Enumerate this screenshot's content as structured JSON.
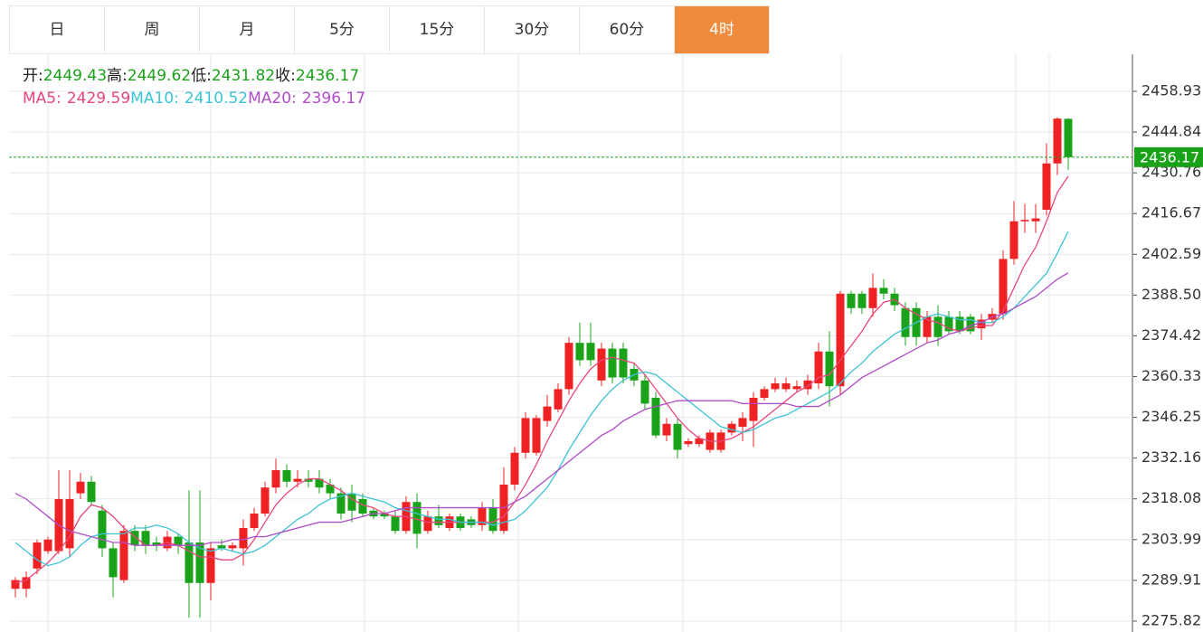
{
  "tabs": [
    "日",
    "周",
    "月",
    "5分",
    "15分",
    "30分",
    "60分",
    "4时"
  ],
  "active_tab": 7,
  "chart_data": {
    "type": "candlestick",
    "ohlc_labels": [
      "开:",
      "高:",
      "低:",
      "收:"
    ],
    "up_color": "#ee2222",
    "down_color": "#1aa31a",
    "ylim": [
      2272.06,
      2471.74
    ],
    "yticks": [
      2458.93,
      2444.84,
      2430.76,
      2416.67,
      2402.59,
      {
        "value": 2388.5,
        "label": "2388.50"
      },
      2374.42,
      2360.33,
      2346.25,
      2332.16,
      2318.08,
      2303.99,
      2289.91,
      2275.82
    ],
    "grid": true,
    "open": [
      2287,
      2287,
      2294,
      2300,
      2300,
      2301,
      2320,
      2324,
      2314,
      2301,
      2290,
      2307,
      2307,
      2303,
      2301,
      2305,
      2303,
      2303,
      2289,
      2302,
      2301,
      2301,
      2308,
      2313,
      2322,
      2328,
      2324,
      2325,
      2325,
      2323,
      2320,
      2320,
      2318,
      2314,
      2313,
      2312,
      2307,
      2317,
      2307,
      2312,
      2308,
      2312,
      2311,
      2309,
      2315,
      2307,
      2323,
      2334,
      2334,
      2345,
      2349,
      2356,
      2372,
      2372,
      2359,
      2370,
      2370,
      2363,
      2359,
      2353,
      2340,
      2344,
      2337,
      2337,
      2335,
      2335,
      2341,
      2343,
      2345,
      2353,
      2356,
      2356,
      2356,
      2356,
      2358,
      2369,
      2357,
      2389,
      2389,
      2384,
      2391,
      2389,
      2384,
      2384,
      2374,
      2381,
      2381,
      2381,
      2381,
      2377,
      2380,
      2382,
      2401,
      2414,
      2414,
      2418,
      2434,
      2449.43
    ],
    "high": [
      2291,
      2293,
      2304,
      2305,
      2328,
      2328,
      2327,
      2326,
      2316,
      2303,
      2309,
      2309,
      2309,
      2305,
      2307,
      2306,
      2321,
      2321,
      2303,
      2304,
      2303,
      2311,
      2315,
      2324,
      2332,
      2330,
      2328,
      2328,
      2328,
      2325,
      2322,
      2323,
      2320,
      2315,
      2314,
      2314,
      2319,
      2320,
      2314,
      2316,
      2313,
      2313,
      2312,
      2317,
      2318,
      2329,
      2336,
      2348,
      2347,
      2354,
      2358,
      2374,
      2379,
      2379,
      2372,
      2372,
      2372,
      2365,
      2361,
      2355,
      2346,
      2346,
      2339,
      2340,
      2342,
      2342,
      2345,
      2348,
      2355,
      2357,
      2360,
      2360,
      2359,
      2361,
      2372,
      2376,
      2390,
      2390,
      2390,
      2396,
      2394,
      2391,
      2386,
      2386,
      2383,
      2385,
      2383,
      2383,
      2382,
      2382,
      2384,
      2404,
      2421,
      2420,
      2420,
      2441,
      2450,
      2449.62
    ],
    "low": [
      2284,
      2284,
      2292,
      2299,
      2299,
      2298,
      2318,
      2316,
      2298,
      2284,
      2289,
      2300,
      2299,
      2300,
      2300,
      2299,
      2277,
      2277,
      2283,
      2300,
      2300,
      2295,
      2307,
      2312,
      2320,
      2322,
      2322,
      2322,
      2320,
      2318,
      2311,
      2310,
      2312,
      2311,
      2311,
      2306,
      2306,
      2301,
      2306,
      2308,
      2307,
      2307,
      2308,
      2307,
      2306,
      2306,
      2321,
      2332,
      2333,
      2343,
      2348,
      2354,
      2364,
      2364,
      2357,
      2358,
      2358,
      2357,
      2349,
      2339,
      2338,
      2332,
      2336,
      2336,
      2334,
      2334,
      2340,
      2338,
      2336,
      2352,
      2355,
      2355,
      2355,
      2354,
      2356,
      2350,
      2354,
      2382,
      2382,
      2381,
      2387,
      2383,
      2371,
      2371,
      2372,
      2371,
      2375,
      2375,
      2375,
      2373,
      2379,
      2380,
      2399,
      2410,
      2410,
      2416,
      2430,
      2431.82
    ],
    "close": [
      2290,
      2291,
      2303,
      2304,
      2318,
      2318,
      2324,
      2317,
      2301,
      2291,
      2307,
      2302,
      2302,
      2302,
      2305,
      2302,
      2289,
      2289,
      2301,
      2301,
      2302,
      2308,
      2313,
      2322,
      2328,
      2324,
      2325,
      2324,
      2322,
      2320,
      2313,
      2314,
      2313,
      2312,
      2312,
      2307,
      2317,
      2306,
      2312,
      2309,
      2312,
      2308,
      2309,
      2315,
      2307,
      2323,
      2334,
      2346,
      2346,
      2350,
      2356,
      2372,
      2366,
      2366,
      2370,
      2360,
      2360,
      2359,
      2351,
      2340,
      2344,
      2335,
      2338,
      2339,
      2341,
      2341,
      2344,
      2346,
      2353,
      2356,
      2358,
      2358,
      2357,
      2359,
      2369,
      2357,
      2389,
      2384,
      2384,
      2391,
      2389,
      2385,
      2374,
      2374,
      2381,
      2374,
      2376,
      2376,
      2376,
      2380,
      2382,
      2401,
      2414,
      2414.5,
      2415,
      2434,
      2449.5,
      2436.17
    ],
    "series": [
      {
        "name": "MA5:",
        "color": "#e8467c",
        "values": [
          2289,
          2290,
          2293,
          2296,
          2300,
          2305,
          2312,
          2316,
          2315,
          2312,
          2308,
          2305,
          2302,
          2302,
          2303,
          2302,
          2300,
          2298,
          2298,
          2297,
          2297,
          2299,
          2304,
          2310,
          2316,
          2320,
          2323,
          2325,
          2325,
          2323,
          2321,
          2318,
          2316,
          2315,
          2313,
          2312,
          2312,
          2311,
          2310,
          2310,
          2310,
          2310,
          2310,
          2310,
          2310,
          2312,
          2317,
          2323,
          2330,
          2338,
          2345,
          2352,
          2358,
          2363,
          2366,
          2367,
          2366,
          2365,
          2361,
          2356,
          2351,
          2346,
          2342,
          2339,
          2338,
          2338,
          2339,
          2341,
          2343,
          2346,
          2349,
          2352,
          2355,
          2357,
          2360,
          2361,
          2366,
          2371,
          2376,
          2382,
          2386,
          2387,
          2384,
          2382,
          2380,
          2379,
          2377,
          2376,
          2377,
          2378,
          2378,
          2383,
          2391,
          2399,
          2405,
          2414,
          2424,
          2429.59
        ]
      },
      {
        "name": "MA10:",
        "color": "#3cc3d6",
        "values": [
          2303,
          2300,
          2297,
          2295,
          2296,
          2298,
          2302,
          2305,
          2306,
          2306,
          2306,
          2308,
          2308,
          2309,
          2308,
          2306,
          2303,
          2301,
          2300,
          2301,
          2300,
          2299,
          2300,
          2302,
          2305,
          2308,
          2311,
          2313,
          2316,
          2318,
          2319,
          2320,
          2319,
          2318,
          2317,
          2315,
          2314,
          2313,
          2312,
          2311,
          2311,
          2310,
          2310,
          2310,
          2309,
          2310,
          2311,
          2314,
          2318,
          2322,
          2328,
          2335,
          2341,
          2347,
          2352,
          2356,
          2359,
          2361,
          2362,
          2361,
          2358,
          2355,
          2352,
          2349,
          2346,
          2343,
          2342,
          2341,
          2342,
          2344,
          2346,
          2347,
          2349,
          2351,
          2353,
          2355,
          2358,
          2362,
          2365,
          2369,
          2372,
          2375,
          2377,
          2379,
          2381,
          2382,
          2381,
          2380,
          2380,
          2379,
          2379,
          2381,
          2384,
          2388,
          2392,
          2396,
          2403,
          2410.52
        ]
      },
      {
        "name": "MA20:",
        "color": "#b04cc8",
        "values": [
          2320,
          2318,
          2315,
          2312,
          2309,
          2307,
          2306,
          2305,
          2304,
          2303,
          2303,
          2302,
          2302,
          2302,
          2302,
          2302,
          2302,
          2302,
          2303,
          2303,
          2304,
          2304,
          2305,
          2305,
          2306,
          2307,
          2308,
          2309,
          2310,
          2310,
          2310,
          2311,
          2312,
          2313,
          2313,
          2314,
          2315,
          2315,
          2315,
          2315,
          2315,
          2315,
          2315,
          2315,
          2315,
          2315,
          2317,
          2319,
          2322,
          2325,
          2328,
          2331,
          2334,
          2337,
          2340,
          2342,
          2345,
          2347,
          2349,
          2350,
          2351,
          2352,
          2352,
          2352,
          2352,
          2352,
          2352,
          2351,
          2351,
          2351,
          2351,
          2351,
          2350,
          2350,
          2350,
          2352,
          2354,
          2357,
          2360,
          2362,
          2364,
          2366,
          2368,
          2370,
          2372,
          2373,
          2375,
          2376,
          2378,
          2379,
          2381,
          2382,
          2384,
          2386,
          2388,
          2391,
          2394,
          2396.17
        ]
      }
    ]
  }
}
